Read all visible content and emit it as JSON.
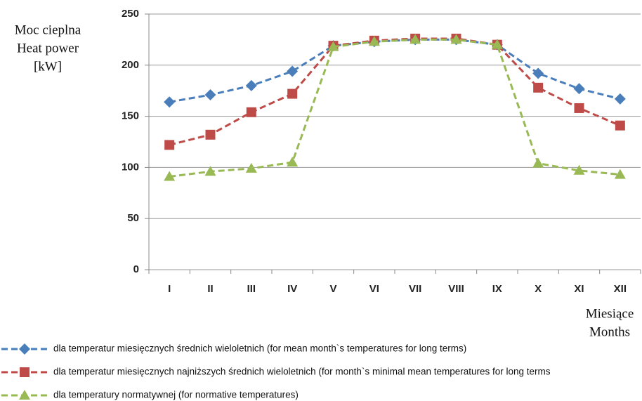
{
  "chart_data": {
    "type": "line",
    "ylabel": [
      "Moc cieplna",
      "Heat power",
      "[kW]"
    ],
    "xlabel": [
      "Miesiące",
      "Months"
    ],
    "categories": [
      "I",
      "II",
      "III",
      "IV",
      "V",
      "VI",
      "VII",
      "VIII",
      "IX",
      "X",
      "XI",
      "XII"
    ],
    "series": [
      {
        "name": "dla temperatur miesięcznych średnich wieloletnich (for mean month`s temperatures for long terms)",
        "color": "#4a7ebb",
        "marker": "diamond",
        "values": [
          164,
          171,
          180,
          194,
          219,
          223,
          225,
          225,
          220,
          192,
          177,
          167
        ]
      },
      {
        "name": "dla temperatur miesięcznych najniższych średnich wieloletnich (for month`s minimal mean temperatures for long terms",
        "color": "#be4b48",
        "marker": "square",
        "values": [
          122,
          132,
          154,
          172,
          219,
          224,
          226,
          226,
          220,
          178,
          158,
          141
        ]
      },
      {
        "name": "dla temperatury normatywnej (for normative temperatures)",
        "color": "#98b954",
        "marker": "triangle",
        "values": [
          91,
          96,
          99,
          105,
          218,
          223,
          225,
          225,
          220,
          104,
          97,
          93
        ]
      }
    ],
    "ylim": [
      0,
      250
    ],
    "yticks": [
      0,
      50,
      100,
      150,
      200,
      250
    ],
    "grid": true
  }
}
